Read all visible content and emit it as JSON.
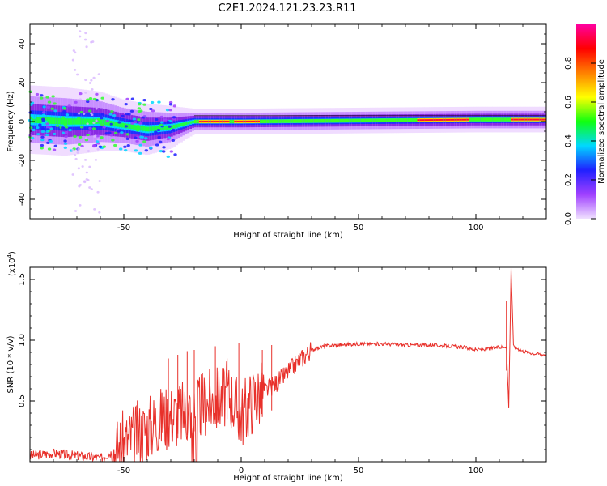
{
  "title": "C2E1.2024.121.23.23.R11",
  "chart_data": [
    {
      "type": "heatmap",
      "xlabel": "Height of straight line (km)",
      "ylabel": "Frequency (Hz)",
      "xlim": [
        -90,
        130
      ],
      "ylim": [
        -50,
        50
      ],
      "xticks": [
        -50,
        0,
        50,
        100
      ],
      "xtick_labels": [
        "-50",
        "",
        "50",
        "100"
      ],
      "yticks": [
        -40,
        -20,
        0,
        20,
        40
      ],
      "colorbar": {
        "label": "Normalized spectral amplitude",
        "range": [
          0,
          1
        ],
        "ticks": [
          0.0,
          0.2,
          0.4,
          0.6,
          0.8
        ],
        "tick_labels": [
          "0.0",
          "0.2",
          "0.4",
          "0.6",
          "0.8"
        ],
        "colors": [
          "#f0e0ff",
          "#a040ff",
          "#2020ff",
          "#00d8ff",
          "#10ff10",
          "#ffff00",
          "#ff8000",
          "#ff0000",
          "#ff00a0"
        ]
      },
      "band": {
        "description_points": [
          {
            "x": -90,
            "center": 1,
            "halfwidth": 8
          },
          {
            "x": -75,
            "center": 0,
            "halfwidth": 8
          },
          {
            "x": -60,
            "center": 0,
            "halfwidth": 7
          },
          {
            "x": -50,
            "center": -2,
            "halfwidth": 6
          },
          {
            "x": -40,
            "center": -4,
            "halfwidth": 6
          },
          {
            "x": -30,
            "center": -3,
            "halfwidth": 5
          },
          {
            "x": -20,
            "center": 0,
            "halfwidth": 3
          },
          {
            "x": 0,
            "center": 0,
            "halfwidth": 3
          },
          {
            "x": 50,
            "center": 0.5,
            "halfwidth": 3
          },
          {
            "x": 100,
            "center": 1,
            "halfwidth": 3
          },
          {
            "x": 130,
            "center": 1,
            "halfwidth": 3
          }
        ],
        "peak_segments": [
          [
            -18,
            -5
          ],
          [
            -3,
            8
          ],
          [
            75,
            97
          ],
          [
            115,
            130
          ]
        ]
      }
    },
    {
      "type": "line",
      "xlabel": "Height of straight line (km)",
      "ylabel": "SNR (10 * v/v)",
      "y_multiplier": "(x10",
      "y_multiplier_exp": "4",
      "y_multiplier_close": ")",
      "xlim": [
        -90,
        130
      ],
      "ylim": [
        0,
        1.6
      ],
      "xticks": [
        -50,
        0,
        50,
        100
      ],
      "xtick_labels": [
        "-50",
        "0",
        "50",
        "100"
      ],
      "yticks": [
        0.5,
        1.0,
        1.5
      ],
      "ytick_labels": [
        "0.5",
        "1.0",
        "1.5"
      ],
      "color": "#e8302a",
      "series_points": [
        [
          -90,
          0.05
        ],
        [
          -80,
          0.07
        ],
        [
          -70,
          0.05
        ],
        [
          -60,
          0.03
        ],
        [
          -55,
          0.08
        ],
        [
          -50,
          0.15
        ],
        [
          -45,
          0.22
        ],
        [
          -40,
          0.28
        ],
        [
          -35,
          0.35
        ],
        [
          -30,
          0.38
        ],
        [
          -25,
          0.4
        ],
        [
          -20,
          0.45
        ],
        [
          -15,
          0.48
        ],
        [
          -10,
          0.52
        ],
        [
          -5,
          0.56
        ],
        [
          0,
          0.38
        ],
        [
          5,
          0.52
        ],
        [
          10,
          0.58
        ],
        [
          15,
          0.65
        ],
        [
          20,
          0.74
        ],
        [
          25,
          0.84
        ],
        [
          30,
          0.92
        ],
        [
          35,
          0.95
        ],
        [
          40,
          0.96
        ],
        [
          50,
          0.97
        ],
        [
          60,
          0.97
        ],
        [
          70,
          0.96
        ],
        [
          80,
          0.96
        ],
        [
          90,
          0.95
        ],
        [
          95,
          0.94
        ],
        [
          100,
          0.92
        ],
        [
          105,
          0.93
        ],
        [
          110,
          0.94
        ],
        [
          113,
          0.95
        ],
        [
          114,
          0.45
        ],
        [
          115,
          1.6
        ],
        [
          116,
          0.95
        ],
        [
          120,
          0.91
        ],
        [
          125,
          0.89
        ],
        [
          130,
          0.88
        ]
      ],
      "spikes": [
        [
          -31,
          0.85
        ],
        [
          -27,
          0.88
        ],
        [
          -23,
          0.91
        ],
        [
          -20,
          0.92
        ],
        [
          -11,
          0.95
        ],
        [
          -6,
          0.85
        ],
        [
          -1,
          0.98
        ],
        [
          5,
          0.85
        ],
        [
          9,
          0.92
        ],
        [
          13,
          0.96
        ],
        [
          113,
          1.32
        ]
      ]
    }
  ]
}
